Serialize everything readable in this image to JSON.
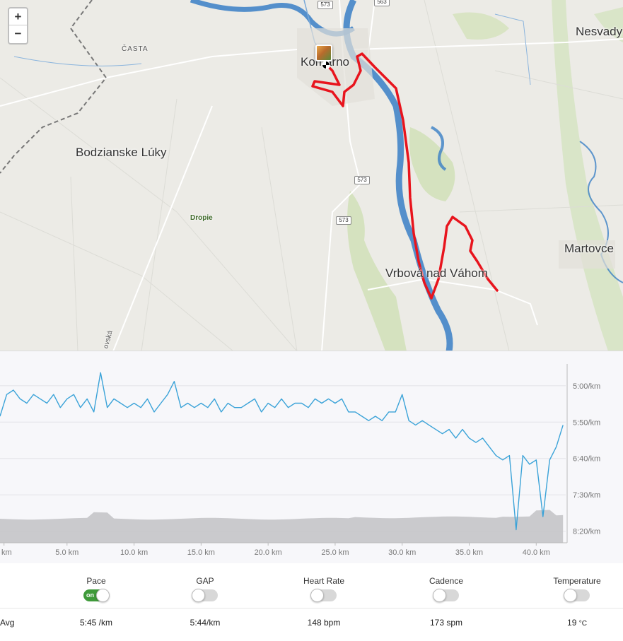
{
  "map": {
    "zoom_in_label": "+",
    "zoom_out_label": "−",
    "places": {
      "komarno": "Komárno",
      "nesvady": "Nesvady",
      "casta": "ČASTA",
      "bodzianske": "Bodzianske Lúky",
      "dropie": "Dropie",
      "martovce": "Martovce",
      "vrbova": "Vrbová nad Váhom",
      "road_side": "ovská"
    },
    "road_shields": [
      "573",
      "563",
      "573",
      "573"
    ],
    "route_color": "#e8141d",
    "river_color": "#3a7fc6"
  },
  "chart": {
    "line_color": "#3ba3d8",
    "elevation_color": "#c4c4c8",
    "y_ticks": [
      "5:00/km",
      "5:50/km",
      "6:40/km",
      "7:30/km",
      "8:20/km"
    ],
    "x_ticks": [
      "km",
      "5.0 km",
      "10.0 km",
      "15.0 km",
      "20.0 km",
      "25.0 km",
      "30.0 km",
      "35.0 km",
      "40.0 km"
    ]
  },
  "stats": {
    "metrics": [
      {
        "name": "Pace",
        "toggle_on": true,
        "toggle_text": "on",
        "avg": "5:45 /km"
      },
      {
        "name": "GAP",
        "toggle_on": false,
        "toggle_text": "",
        "avg": "5:44/km"
      },
      {
        "name": "Heart Rate",
        "toggle_on": false,
        "toggle_text": "",
        "avg": "148 bpm"
      },
      {
        "name": "Cadence",
        "toggle_on": false,
        "toggle_text": "",
        "avg": "173 spm"
      },
      {
        "name": "Temperature",
        "toggle_on": false,
        "toggle_text": "",
        "avg": "19",
        "avg_unit": "°C"
      }
    ],
    "avg_label": "Avg"
  },
  "chart_data": {
    "type": "line",
    "x_unit": "km",
    "x_range": [
      0,
      42.2
    ],
    "series": [
      {
        "x": [
          0,
          0.5,
          1,
          1.5,
          2,
          2.5,
          3,
          3.5,
          4,
          4.5,
          5,
          5.5,
          6,
          6.5,
          7,
          7.5,
          8,
          8.5,
          9,
          9.5,
          10,
          10.5,
          11,
          11.5,
          12,
          12.5,
          13,
          13.5,
          14,
          14.5,
          15,
          15.5,
          16,
          16.5,
          17,
          17.5,
          18,
          18.5,
          19,
          19.5,
          20,
          20.5,
          21,
          21.5,
          22,
          22.5,
          23,
          23.5,
          24,
          24.5,
          25,
          25.5,
          26,
          26.5,
          27,
          27.5,
          28,
          28.5,
          29,
          29.5,
          30,
          30.5,
          31,
          31.5,
          32,
          32.5,
          33,
          33.5,
          34,
          34.5,
          35,
          35.5,
          36,
          36.5,
          37,
          37.5,
          38,
          38.5,
          39,
          39.5,
          40,
          40.5,
          41,
          41.5,
          42
        ],
        "pace_min_per_km": [
          5.7,
          5.2,
          5.1,
          5.3,
          5.4,
          5.2,
          5.3,
          5.4,
          5.2,
          5.5,
          5.3,
          5.2,
          5.5,
          5.3,
          5.6,
          4.7,
          5.5,
          5.3,
          5.4,
          5.5,
          5.4,
          5.5,
          5.3,
          5.6,
          5.4,
          5.2,
          4.9,
          5.5,
          5.4,
          5.5,
          5.4,
          5.5,
          5.3,
          5.6,
          5.4,
          5.5,
          5.5,
          5.4,
          5.3,
          5.6,
          5.4,
          5.5,
          5.3,
          5.5,
          5.4,
          5.4,
          5.5,
          5.3,
          5.4,
          5.3,
          5.4,
          5.3,
          5.6,
          5.6,
          5.7,
          5.8,
          5.7,
          5.8,
          5.6,
          5.6,
          5.2,
          5.8,
          5.9,
          5.8,
          5.9,
          6.0,
          6.1,
          6.0,
          6.2,
          6.0,
          6.2,
          6.3,
          6.2,
          6.4,
          6.6,
          6.7,
          6.6,
          8.3,
          6.6,
          6.8,
          6.7,
          8.0,
          6.7,
          6.4,
          5.9
        ]
      }
    ],
    "y_ticks": [
      "5:00/km",
      "5:50/km",
      "6:40/km",
      "7:30/km",
      "8:20/km"
    ],
    "x_ticks": [
      "km",
      "5.0 km",
      "10.0 km",
      "15.0 km",
      "20.0 km",
      "25.0 km",
      "30.0 km",
      "35.0 km",
      "40.0 km"
    ],
    "y_range_min_per_km": [
      4.5,
      8.6
    ],
    "y_inverted": true,
    "grid": true
  }
}
